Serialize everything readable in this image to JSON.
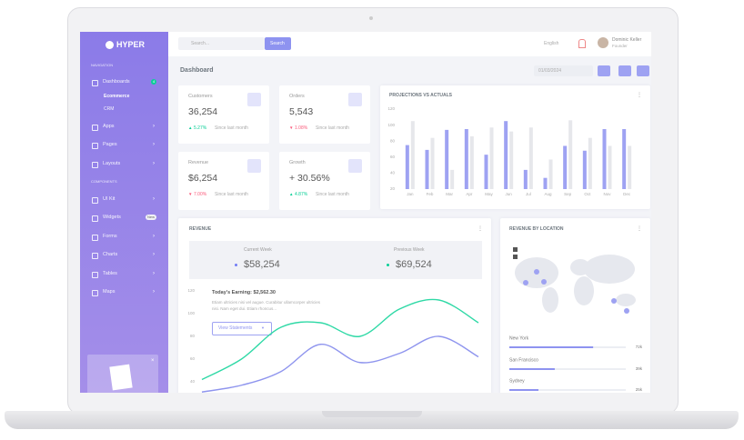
{
  "sidebar": {
    "logo": "HYPER",
    "navigation_heading": "NAVIGATION",
    "components_heading": "COMPONENTS",
    "items": [
      {
        "label": "Dashboards",
        "badge": "4"
      },
      {
        "label": "Ecommerce"
      },
      {
        "label": "CRM"
      },
      {
        "label": "Apps"
      },
      {
        "label": "Pages"
      },
      {
        "label": "Layouts"
      },
      {
        "label": "UI Kit"
      },
      {
        "label": "Widgets",
        "badge": "New"
      },
      {
        "label": "Forms"
      },
      {
        "label": "Charts"
      },
      {
        "label": "Tables"
      },
      {
        "label": "Maps"
      }
    ]
  },
  "topbar": {
    "search_placeholder": "Search...",
    "search_button": "Search",
    "language": "English",
    "user_name": "Dominic Keller",
    "user_role": "Founder"
  },
  "page_title": "Dashboard",
  "date": "01/03/2024",
  "stats": [
    {
      "title": "Customers",
      "value": "36,254",
      "change": "5.27%",
      "trend": "up",
      "note": "Since last month"
    },
    {
      "title": "Orders",
      "value": "5,543",
      "change": "1.08%",
      "trend": "down",
      "note": "Since last month"
    },
    {
      "title": "Revenue",
      "value": "$6,254",
      "change": "7.00%",
      "trend": "down",
      "note": "Since last month"
    },
    {
      "title": "Growth",
      "value": "+ 30.56%",
      "change": "4.87%",
      "trend": "up",
      "note": "Since last month"
    }
  ],
  "chart_data": [
    {
      "type": "bar",
      "title": "PROJECTIONS VS ACTUALS",
      "categories": [
        "Jan",
        "Feb",
        "Mar",
        "Apr",
        "May",
        "Jun",
        "Jul",
        "Aug",
        "Sep",
        "Oct",
        "Nov",
        "Dec"
      ],
      "series": [
        {
          "color": "#9ea2f2",
          "values": [
            75,
            69,
            94,
            95,
            63,
            105,
            44,
            34,
            74,
            68,
            95,
            95
          ]
        },
        {
          "color": "#e6e7eb",
          "values": [
            105,
            84,
            44,
            86,
            97,
            92,
            97,
            57,
            106,
            84,
            74,
            74
          ]
        }
      ],
      "ylim": [
        20,
        120
      ],
      "yticks": [
        20,
        40,
        60,
        80,
        100,
        120
      ]
    },
    {
      "type": "line",
      "title": "REVENUE",
      "series": [
        {
          "color": "#2fd9a6",
          "values": [
            42,
            60,
            88,
            92,
            80,
            104,
            112,
            92
          ]
        },
        {
          "color": "#8f95ee",
          "values": [
            31,
            37,
            49,
            73,
            57,
            65,
            80,
            62
          ]
        }
      ],
      "ylim": [
        30,
        120
      ],
      "yticks": [
        40,
        60,
        80,
        100,
        120
      ]
    }
  ],
  "revenue": {
    "current_label": "Current Week",
    "current_value": "$58,254",
    "previous_label": "Previous Week",
    "previous_value": "$69,524",
    "earning": "Today's Earning: $2,562.30",
    "text": "Etiam ultricies nisi vel augue. Curabitur ullamcorper ultricies nisi. Nam eget dui. Etiam rhoncus...",
    "button": "View Statements"
  },
  "location": {
    "title": "REVENUE BY LOCATION",
    "xlim": [
      0,
      100
    ],
    "items": [
      {
        "name": "New York",
        "value": 72,
        "value_label": "72k"
      },
      {
        "name": "San Francisco",
        "value": 39,
        "value_label": "39k"
      },
      {
        "name": "Sydney",
        "value": 25,
        "value_label": "25k"
      }
    ]
  }
}
